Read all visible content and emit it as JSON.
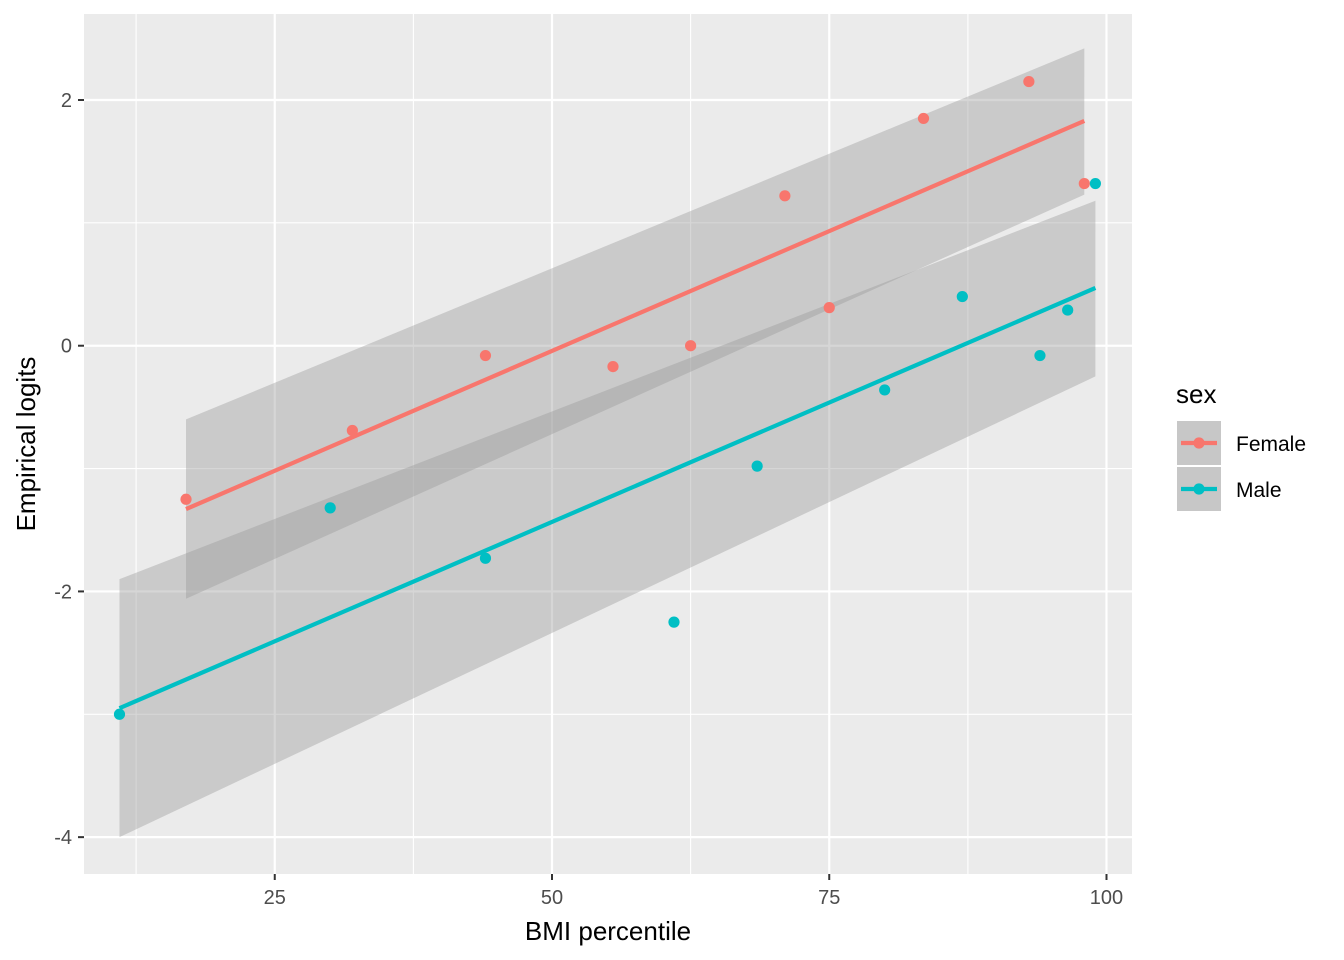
{
  "chart_data": {
    "type": "scatter",
    "title": "",
    "xlabel": "BMI percentile",
    "ylabel": "Empirical logits",
    "xlim": [
      7.8,
      102.3
    ],
    "ylim": [
      -4.3,
      2.7
    ],
    "x_ticks": [
      25,
      50,
      75,
      100
    ],
    "x_tick_labels": [
      "25",
      "50",
      "75",
      "100"
    ],
    "y_ticks": [
      -4,
      -2,
      0,
      2
    ],
    "y_tick_labels": [
      "-4",
      "-2",
      "0",
      "2"
    ],
    "grid": true,
    "legend": {
      "title": "sex",
      "position": "right"
    },
    "series": [
      {
        "name": "Female",
        "color": "#F8766D",
        "points": [
          {
            "x": 17,
            "y": -1.25
          },
          {
            "x": 32,
            "y": -0.69
          },
          {
            "x": 44,
            "y": -0.08
          },
          {
            "x": 55.5,
            "y": -0.17
          },
          {
            "x": 62.5,
            "y": 0.0
          },
          {
            "x": 71,
            "y": 1.22
          },
          {
            "x": 75,
            "y": 0.31
          },
          {
            "x": 83.5,
            "y": 1.85
          },
          {
            "x": 93,
            "y": 2.15
          },
          {
            "x": 98,
            "y": 1.32
          }
        ],
        "fit_line": {
          "x": [
            17,
            98
          ],
          "y": [
            -1.33,
            1.83
          ]
        },
        "ci_band": {
          "x": [
            17,
            98
          ],
          "upper": [
            -0.6,
            2.42
          ],
          "lower": [
            -2.06,
            1.23
          ]
        }
      },
      {
        "name": "Male",
        "color": "#00BFC4",
        "points": [
          {
            "x": 11,
            "y": -3.0
          },
          {
            "x": 30,
            "y": -1.32
          },
          {
            "x": 44,
            "y": -1.73
          },
          {
            "x": 61,
            "y": -2.25
          },
          {
            "x": 68.5,
            "y": -0.98
          },
          {
            "x": 80,
            "y": -0.36
          },
          {
            "x": 87,
            "y": 0.4
          },
          {
            "x": 94,
            "y": -0.08
          },
          {
            "x": 96.5,
            "y": 0.29
          },
          {
            "x": 99,
            "y": 1.32
          }
        ],
        "fit_line": {
          "x": [
            11,
            99
          ],
          "y": [
            -2.95,
            0.47
          ]
        },
        "ci_band": {
          "x": [
            11,
            99
          ],
          "upper": [
            -1.9,
            1.18
          ],
          "lower": [
            -4.0,
            -0.25
          ]
        }
      }
    ]
  }
}
